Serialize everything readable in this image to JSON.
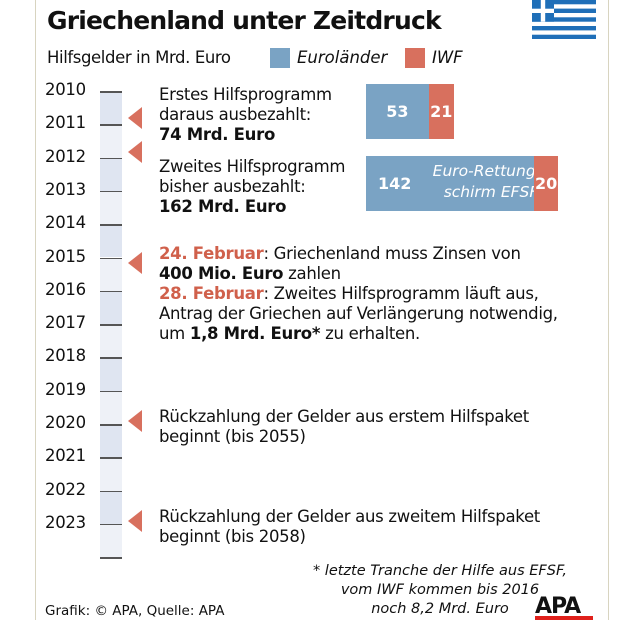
{
  "title": "Griechenland unter Zeitdruck",
  "subtitle": "Hilfsgelder in Mrd. Euro",
  "legend": [
    {
      "label": "Euroländer",
      "color": "#7aa3c4"
    },
    {
      "label": "IWF",
      "color": "#d8705e"
    }
  ],
  "years": [
    "2010",
    "2011",
    "2012",
    "2013",
    "2014",
    "2015",
    "2016",
    "2017",
    "2018",
    "2019",
    "2020",
    "2021",
    "2022",
    "2023"
  ],
  "events": {
    "first": {
      "l1": "Erstes Hilfsprogramm",
      "l2": "daraus ausbezahlt:",
      "l3": "74 Mrd. Euro"
    },
    "second": {
      "l1": "Zweites Hilfsprogramm",
      "l2": "bisher ausbezahlt:",
      "l3": "162 Mrd. Euro"
    },
    "feb": {
      "d1": "24. Februar",
      "t1": ": Griechenland muss Zinsen von",
      "t1b": "400 Mio. Euro",
      "t1c": " zahlen",
      "d2": "28. Februar",
      "t2": ": Zweites Hilfsprogramm läuft aus,",
      "t3": "Antrag der Griechen auf Verlängerung notwendig,",
      "t4a": "um ",
      "t4b": "1,8 Mrd. Euro*",
      "t4c": " zu erhalten."
    },
    "r1": {
      "l1": "Rückzahlung der Gelder aus erstem Hilfspaket",
      "l2": "beginnt (bis 2055)"
    },
    "r2": {
      "l1": "Rückzahlung der Gelder aus zweitem Hilfspaket",
      "l2": "beginnt (bis 2058)"
    }
  },
  "chart_data": {
    "type": "bar",
    "stacked": true,
    "orientation": "horizontal",
    "categories": [
      "Erstes Hilfsprogramm",
      "Zweites Hilfsprogramm"
    ],
    "series": [
      {
        "name": "Euroländer",
        "values": [
          53,
          142
        ]
      },
      {
        "name": "IWF",
        "values": [
          21,
          20
        ]
      }
    ],
    "annotation": {
      "l1": "Euro-Rettungs-",
      "l2": "schirm EFSF"
    }
  },
  "footnote": {
    "l1": "* letzte Tranche der Hilfe aus EFSF,",
    "l2": "vom IWF kommen bis 2016",
    "l3": "noch 8,2 Mrd. Euro"
  },
  "source": "Grafik: © APA, Quelle: APA",
  "logo": "APA"
}
